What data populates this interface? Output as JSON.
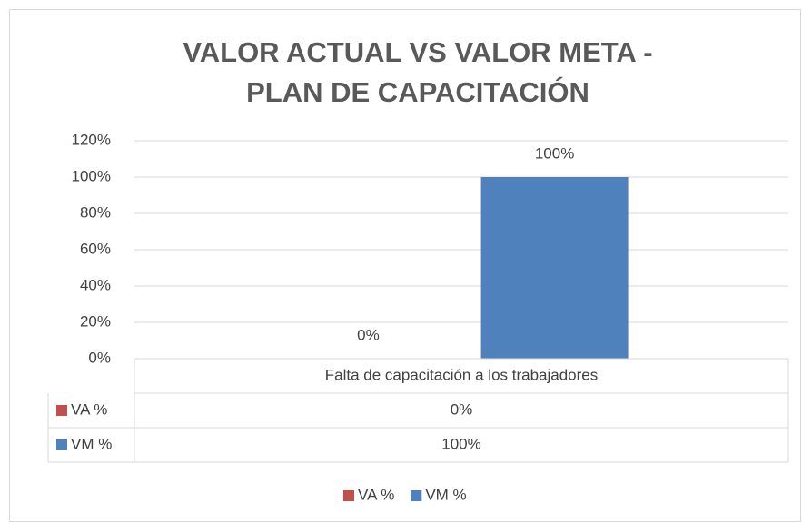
{
  "chart_data": {
    "type": "bar",
    "title": "VALOR ACTUAL VS VALOR META - PLAN DE CAPACITACIÓN",
    "categories": [
      "Falta de capacitación a los trabajadores"
    ],
    "series": [
      {
        "name": "VA %",
        "color": "#c0504d",
        "values": [
          0
        ],
        "value_labels": [
          "0%"
        ]
      },
      {
        "name": "VM %",
        "color": "#4f81bd",
        "values": [
          100
        ],
        "value_labels": [
          "100%"
        ]
      }
    ],
    "ylim": [
      0,
      120
    ],
    "yticks": [
      {
        "value": 0,
        "label": "0%"
      },
      {
        "value": 20,
        "label": "20%"
      },
      {
        "value": 40,
        "label": "40%"
      },
      {
        "value": 60,
        "label": "60%"
      },
      {
        "value": 80,
        "label": "80%"
      },
      {
        "value": 100,
        "label": "100%"
      },
      {
        "value": 120,
        "label": "120%"
      }
    ],
    "grid": true,
    "legend": "bottom",
    "data_table": true
  }
}
